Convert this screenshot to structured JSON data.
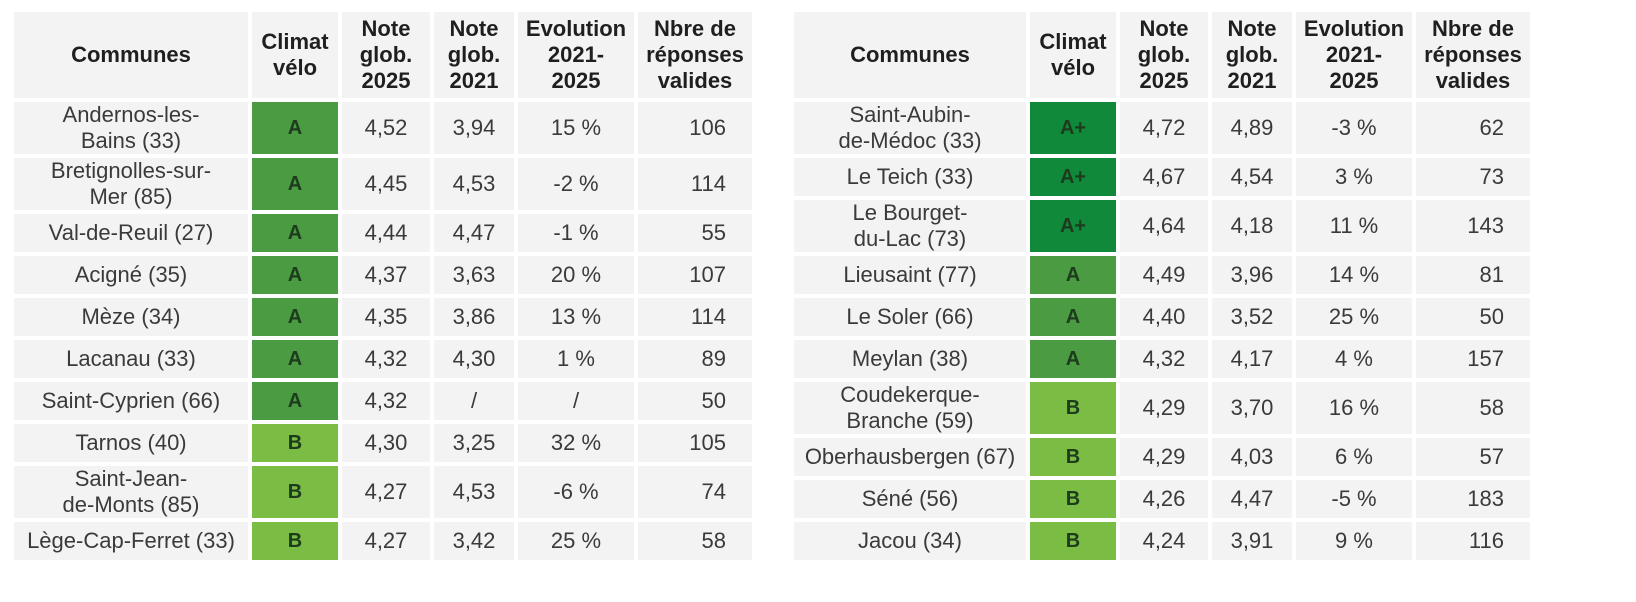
{
  "headers": {
    "commune": "Communes",
    "climat": "Climat\nvélo",
    "note2025": "Note\nglob.\n2025",
    "note2021": "Note\nglob.\n2021",
    "evolution": "Evolution\n2021-\n2025",
    "reponses": "Nbre de\nréponses\nvalides"
  },
  "grade_colors": {
    "A+": "#11893a",
    "A": "#4a9b41",
    "B": "#7bbc45"
  },
  "left_table": [
    {
      "commune": "Andernos-les-\nBains (33)",
      "grade": "A",
      "note2025": "4,52",
      "note2021": "3,94",
      "evolution": "15 %",
      "reponses": "106"
    },
    {
      "commune": "Bretignolles-sur-\nMer (85)",
      "grade": "A",
      "note2025": "4,45",
      "note2021": "4,53",
      "evolution": "-2 %",
      "reponses": "114"
    },
    {
      "commune": "Val-de-Reuil (27)",
      "grade": "A",
      "note2025": "4,44",
      "note2021": "4,47",
      "evolution": "-1 %",
      "reponses": "55"
    },
    {
      "commune": "Acigné (35)",
      "grade": "A",
      "note2025": "4,37",
      "note2021": "3,63",
      "evolution": "20 %",
      "reponses": "107"
    },
    {
      "commune": "Mèze (34)",
      "grade": "A",
      "note2025": "4,35",
      "note2021": "3,86",
      "evolution": "13 %",
      "reponses": "114"
    },
    {
      "commune": "Lacanau (33)",
      "grade": "A",
      "note2025": "4,32",
      "note2021": "4,30",
      "evolution": "1 %",
      "reponses": "89"
    },
    {
      "commune": "Saint-Cyprien (66)",
      "grade": "A",
      "note2025": "4,32",
      "note2021": "/",
      "evolution": "/",
      "reponses": "50"
    },
    {
      "commune": "Tarnos (40)",
      "grade": "B",
      "note2025": "4,30",
      "note2021": "3,25",
      "evolution": "32 %",
      "reponses": "105"
    },
    {
      "commune": "Saint-Jean-\nde-Monts (85)",
      "grade": "B",
      "note2025": "4,27",
      "note2021": "4,53",
      "evolution": "-6 %",
      "reponses": "74"
    },
    {
      "commune": "Lège-Cap-Ferret (33)",
      "grade": "B",
      "note2025": "4,27",
      "note2021": "3,42",
      "evolution": "25 %",
      "reponses": "58"
    }
  ],
  "right_table": [
    {
      "commune": "Saint-Aubin-\nde-Médoc (33)",
      "grade": "A+",
      "note2025": "4,72",
      "note2021": "4,89",
      "evolution": "-3 %",
      "reponses": "62"
    },
    {
      "commune": "Le Teich (33)",
      "grade": "A+",
      "note2025": "4,67",
      "note2021": "4,54",
      "evolution": "3 %",
      "reponses": "73"
    },
    {
      "commune": "Le Bourget-\ndu-Lac (73)",
      "grade": "A+",
      "note2025": "4,64",
      "note2021": "4,18",
      "evolution": "11 %",
      "reponses": "143"
    },
    {
      "commune": "Lieusaint (77)",
      "grade": "A",
      "note2025": "4,49",
      "note2021": "3,96",
      "evolution": "14 %",
      "reponses": "81"
    },
    {
      "commune": "Le Soler (66)",
      "grade": "A",
      "note2025": "4,40",
      "note2021": "3,52",
      "evolution": "25 %",
      "reponses": "50"
    },
    {
      "commune": "Meylan (38)",
      "grade": "A",
      "note2025": "4,32",
      "note2021": "4,17",
      "evolution": "4 %",
      "reponses": "157"
    },
    {
      "commune": "Coudekerque-\nBranche (59)",
      "grade": "B",
      "note2025": "4,29",
      "note2021": "3,70",
      "evolution": "16 %",
      "reponses": "58"
    },
    {
      "commune": "Oberhausbergen (67)",
      "grade": "B",
      "note2025": "4,29",
      "note2021": "4,03",
      "evolution": "6 %",
      "reponses": "57"
    },
    {
      "commune": "Séné (56)",
      "grade": "B",
      "note2025": "4,26",
      "note2021": "4,47",
      "evolution": "-5 %",
      "reponses": "183"
    },
    {
      "commune": "Jacou (34)",
      "grade": "B",
      "note2025": "4,24",
      "note2021": "3,91",
      "evolution": "9 %",
      "reponses": "116"
    }
  ]
}
